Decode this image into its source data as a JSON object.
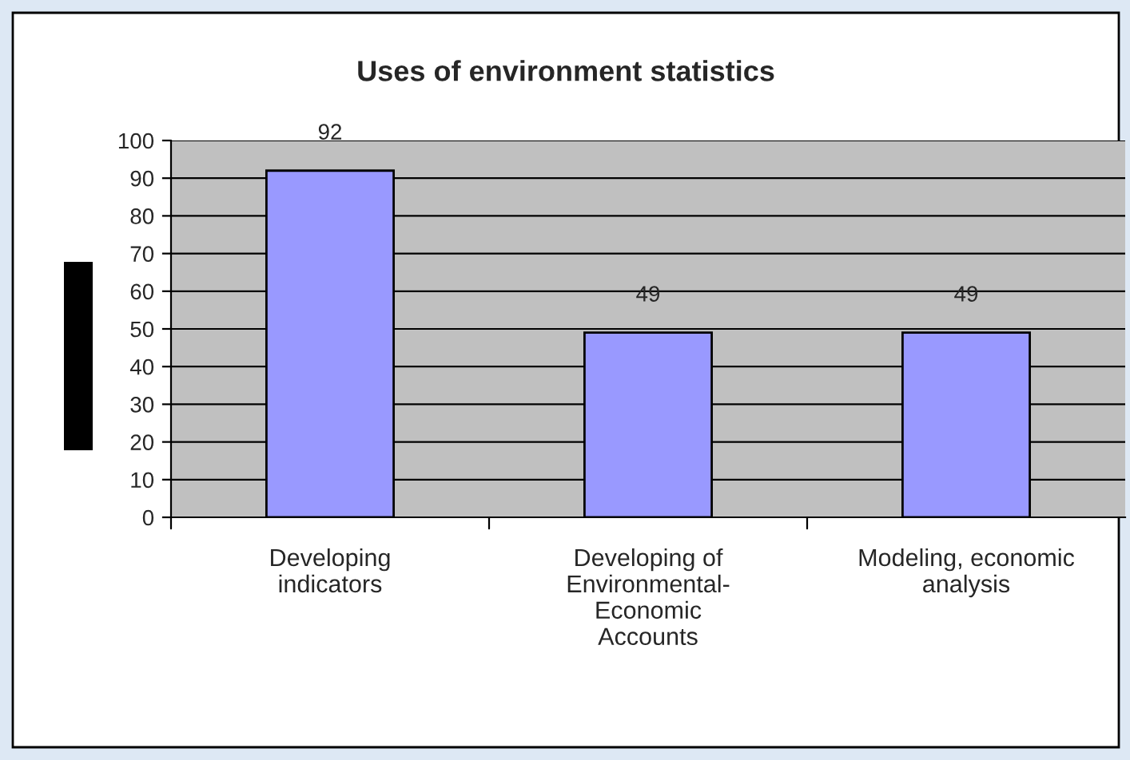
{
  "chart_data": {
    "type": "bar",
    "title": "Uses of environment statistics",
    "categories": [
      "Developing\nindicators",
      "Developing of\nEnvironmental-\nEconomic\nAccounts",
      "Modeling, economic\nanalysis"
    ],
    "values": [
      92,
      49,
      49
    ],
    "color": "#9999ff",
    "ylim": [
      0,
      100
    ],
    "yticks": [
      0,
      10,
      20,
      30,
      40,
      50,
      60,
      70,
      80,
      90,
      100
    ],
    "grid": "y",
    "data_labels": true,
    "legend": false
  }
}
